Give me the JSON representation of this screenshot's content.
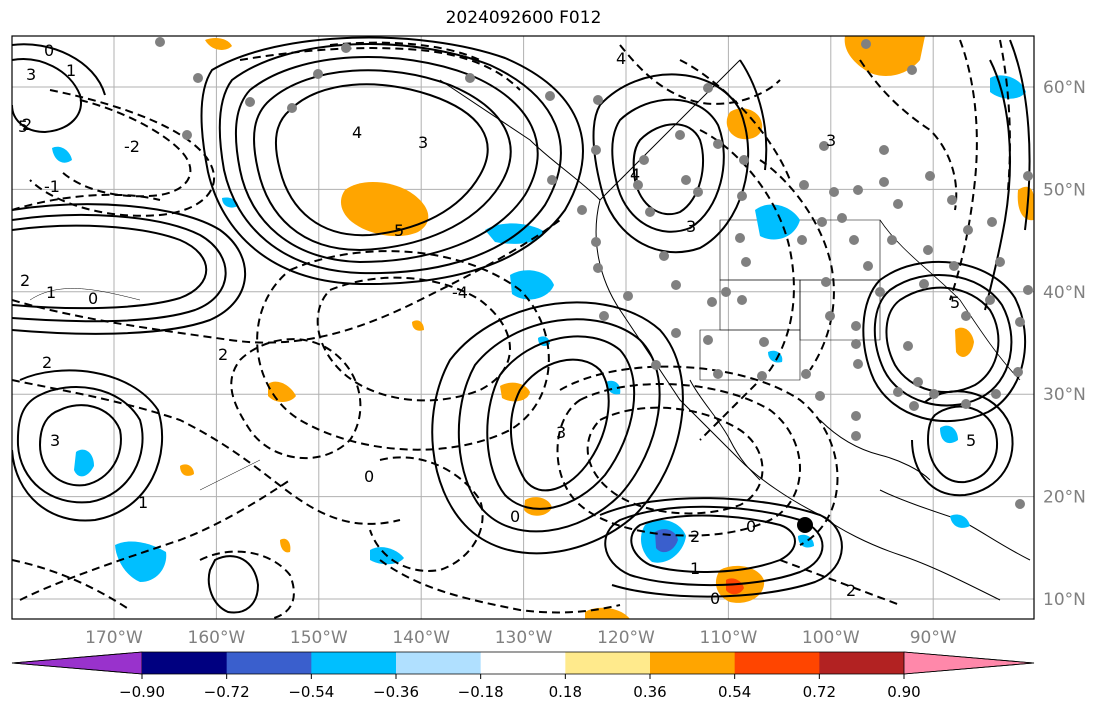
{
  "title": "2024092600 F012",
  "map": {
    "longitude_labels": [
      "170°W",
      "160°W",
      "150°W",
      "140°W",
      "130°W",
      "120°W",
      "110°W",
      "100°W",
      "90°W"
    ],
    "latitude_labels": [
      "60°N",
      "50°N",
      "40°N",
      "30°N",
      "20°N",
      "10°N"
    ],
    "contour_labels": [
      "0",
      "1",
      "2",
      "3",
      "4",
      "5",
      "-2",
      "-1",
      "-4",
      "0",
      "1",
      "2",
      "3",
      "0",
      "2",
      "1",
      "0",
      "5",
      "3",
      "0",
      "2",
      "3",
      "4",
      "5",
      "2",
      "3",
      "0",
      "1",
      "2",
      "5",
      "3",
      "4"
    ]
  },
  "colorbar": {
    "ticks": [
      "−0.90",
      "−0.72",
      "−0.54",
      "−0.36",
      "−0.18",
      "0.18",
      "0.36",
      "0.54",
      "0.72",
      "0.90"
    ],
    "colors": [
      "#9932cc",
      "#000080",
      "#3a5fcd",
      "#00bfff",
      "#b0e0ff",
      "#ffffff",
      "#ffea8c",
      "#ffa500",
      "#ff4500",
      "#b22222",
      "#ff88aa"
    ]
  }
}
